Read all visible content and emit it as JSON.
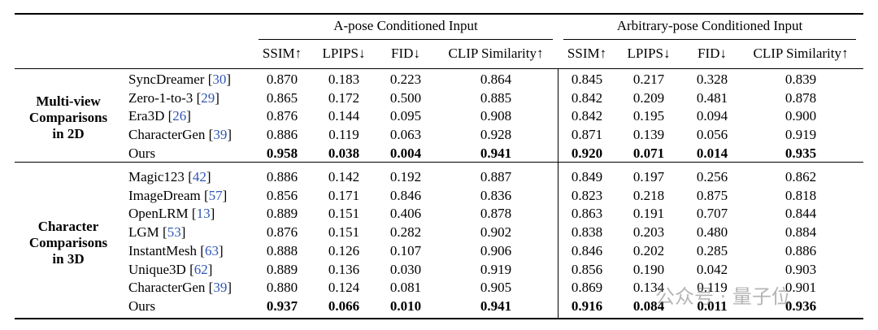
{
  "header": {
    "group_a": "A-pose Conditioned Input",
    "group_b": "Arbitrary-pose Conditioned Input",
    "metrics": [
      "SSIM↑",
      "LPIPS↓",
      "FID↓",
      "CLIP Similarity↑"
    ]
  },
  "sections": [
    {
      "label": [
        "Multi-view",
        "Comparisons",
        "in 2D"
      ],
      "rows": [
        {
          "method": "SyncDreamer",
          "cite": "30",
          "a": [
            "0.870",
            "0.183",
            "0.223",
            "0.864"
          ],
          "b": [
            "0.845",
            "0.217",
            "0.328",
            "0.839"
          ],
          "bold": false
        },
        {
          "method": "Zero-1-to-3",
          "cite": "29",
          "a": [
            "0.865",
            "0.172",
            "0.500",
            "0.885"
          ],
          "b": [
            "0.842",
            "0.209",
            "0.481",
            "0.878"
          ],
          "bold": false
        },
        {
          "method": "Era3D",
          "cite": "26",
          "a": [
            "0.876",
            "0.144",
            "0.095",
            "0.908"
          ],
          "b": [
            "0.842",
            "0.195",
            "0.094",
            "0.900"
          ],
          "bold": false
        },
        {
          "method": "CharacterGen",
          "cite": "39",
          "a": [
            "0.886",
            "0.119",
            "0.063",
            "0.928"
          ],
          "b": [
            "0.871",
            "0.139",
            "0.056",
            "0.919"
          ],
          "bold": false
        },
        {
          "method": "Ours",
          "cite": "",
          "a": [
            "0.958",
            "0.038",
            "0.004",
            "0.941"
          ],
          "b": [
            "0.920",
            "0.071",
            "0.014",
            "0.935"
          ],
          "bold": true
        }
      ]
    },
    {
      "label": [
        "Character",
        "Comparisons",
        "in 3D"
      ],
      "rows": [
        {
          "method": "Magic123",
          "cite": "42",
          "a": [
            "0.886",
            "0.142",
            "0.192",
            "0.887"
          ],
          "b": [
            "0.849",
            "0.197",
            "0.256",
            "0.862"
          ],
          "bold": false
        },
        {
          "method": "ImageDream",
          "cite": "57",
          "a": [
            "0.856",
            "0.171",
            "0.846",
            "0.836"
          ],
          "b": [
            "0.823",
            "0.218",
            "0.875",
            "0.818"
          ],
          "bold": false
        },
        {
          "method": "OpenLRM",
          "cite": "13",
          "a": [
            "0.889",
            "0.151",
            "0.406",
            "0.878"
          ],
          "b": [
            "0.863",
            "0.191",
            "0.707",
            "0.844"
          ],
          "bold": false
        },
        {
          "method": "LGM",
          "cite": "53",
          "a": [
            "0.876",
            "0.151",
            "0.282",
            "0.902"
          ],
          "b": [
            "0.838",
            "0.203",
            "0.480",
            "0.884"
          ],
          "bold": false
        },
        {
          "method": "InstantMesh",
          "cite": "63",
          "a": [
            "0.888",
            "0.126",
            "0.107",
            "0.906"
          ],
          "b": [
            "0.846",
            "0.202",
            "0.285",
            "0.886"
          ],
          "bold": false
        },
        {
          "method": "Unique3D",
          "cite": "62",
          "a": [
            "0.889",
            "0.136",
            "0.030",
            "0.919"
          ],
          "b": [
            "0.856",
            "0.190",
            "0.042",
            "0.903"
          ],
          "bold": false
        },
        {
          "method": "CharacterGen",
          "cite": "39",
          "a": [
            "0.880",
            "0.124",
            "0.081",
            "0.905"
          ],
          "b": [
            "0.869",
            "0.134",
            "0.119",
            "0.901"
          ],
          "bold": false
        },
        {
          "method": "Ours",
          "cite": "",
          "a": [
            "0.937",
            "0.066",
            "0.010",
            "0.941"
          ],
          "b": [
            "0.916",
            "0.084",
            "0.011",
            "0.936"
          ],
          "bold": true
        }
      ]
    }
  ],
  "watermark": "公众号 · 量子位"
}
